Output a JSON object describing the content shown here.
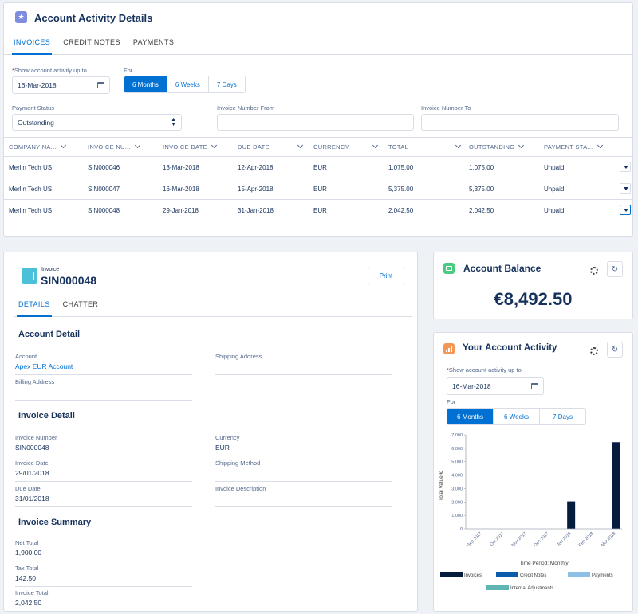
{
  "activity": {
    "title": "Account Activity Details",
    "tabs": [
      "INVOICES",
      "CREDIT NOTES",
      "PAYMENTS"
    ],
    "show_label": "Show account activity up to",
    "date": "16-Mar-2018",
    "for_label": "For",
    "periods": [
      "6 Months",
      "6 Weeks",
      "7 Days"
    ],
    "payment_status_label": "Payment Status",
    "payment_status": "Outstanding",
    "invoice_from_label": "Invoice Number From",
    "invoice_to_label": "Invoice Number To",
    "columns": [
      "COMPANY NA...",
      "INVOICE NU...",
      "INVOICE DATE",
      "DUE DATE",
      "CURRENCY",
      "TOTAL",
      "OUTSTANDING",
      "PAYMENT STA..."
    ],
    "rows": [
      [
        "Merlin Tech US",
        "SIN000046",
        "13-Mar-2018",
        "12-Apr-2018",
        "EUR",
        "1,075.00",
        "1,075.00",
        "Unpaid"
      ],
      [
        "Merlin Tech US",
        "SIN000047",
        "16-Mar-2018",
        "15-Apr-2018",
        "EUR",
        "5,375.00",
        "5,375.00",
        "Unpaid"
      ],
      [
        "Merlin Tech US",
        "SIN000048",
        "29-Jan-2018",
        "31-Jan-2018",
        "EUR",
        "2,042.50",
        "2,042.50",
        "Unpaid"
      ]
    ]
  },
  "invoice": {
    "type_label": "Invoice",
    "number": "SIN000048",
    "print": "Print",
    "tabs": [
      "DETAILS",
      "CHATTER"
    ],
    "account_detail": "Account Detail",
    "account_label": "Account",
    "account_value": "Apex EUR Account",
    "shipping_address_label": "Shipping Address",
    "billing_address_label": "Billing Address",
    "invoice_detail": "Invoice Detail",
    "invoice_number_label": "Invoice Number",
    "invoice_number_value": "SIN000048",
    "currency_label": "Currency",
    "currency_value": "EUR",
    "invoice_date_label": "Invoice Date",
    "invoice_date_value": "29/01/2018",
    "shipping_method_label": "Shipping Method",
    "due_date_label": "Due Date",
    "due_date_value": "31/01/2018",
    "invoice_description_label": "Invoice Description",
    "invoice_summary": "Invoice Summary",
    "net_total_label": "Net Total",
    "net_total_value": "1,900.00",
    "tax_total_label": "Tax Total",
    "tax_total_value": "142.50",
    "invoice_total_label": "Invoice Total",
    "invoice_total_value": "2,042.50"
  },
  "balance": {
    "title": "Account Balance",
    "amount": "€8,492.50"
  },
  "your_activity": {
    "title": "Your Account Activity",
    "show_label": "Show account activity up to",
    "date": "16-Mar-2018",
    "for_label": "For",
    "periods": [
      "6 Months",
      "6 Weeks",
      "7 Days"
    ]
  },
  "colors": {
    "accent": "#0070d2",
    "invoices": "#061c3f",
    "credit_notes": "#0b5cab",
    "payments": "#8ec0e6",
    "internal_adjustments": "#5db6b3"
  },
  "chart_data": {
    "type": "bar",
    "categories": [
      "Sep 2017",
      "Oct 2017",
      "Nov 2017",
      "Dec 2017",
      "Jan 2018",
      "Feb 2018",
      "Mar 2018"
    ],
    "series": [
      {
        "name": "Invoices",
        "values": [
          0,
          0,
          0,
          0,
          2042.5,
          0,
          6450
        ]
      },
      {
        "name": "Credit Notes",
        "values": [
          0,
          0,
          0,
          0,
          0,
          0,
          0
        ]
      },
      {
        "name": "Payments",
        "values": [
          0,
          0,
          0,
          0,
          0,
          0,
          0
        ]
      },
      {
        "name": "Internal Adjustments",
        "values": [
          0,
          0,
          0,
          0,
          0,
          0,
          0
        ]
      }
    ],
    "yticks": [
      "7,000",
      "6,000",
      "5,000",
      "4,000",
      "3,000",
      "2,000",
      "1,000",
      "0"
    ],
    "ylim": [
      0,
      7000
    ],
    "xlabel": "Time Period: Monthly",
    "ylabel": "Total Value €",
    "legend": [
      "Invoices",
      "Credit Notes",
      "Payments",
      "Internal Adjustments"
    ],
    "legend_position": "bottom",
    "grid": false
  }
}
